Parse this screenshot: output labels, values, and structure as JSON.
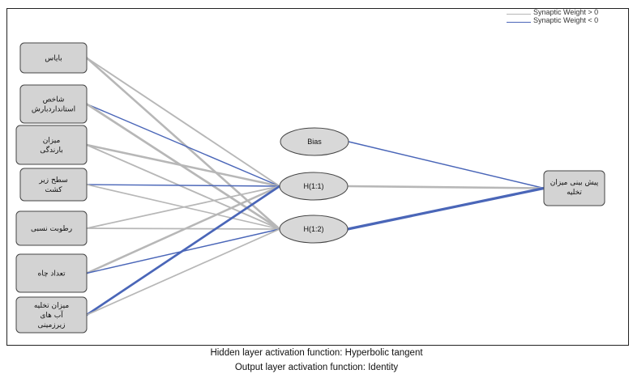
{
  "legend": {
    "positive_label": "Synaptic Weight > 0",
    "negative_label": "Synaptic Weight < 0",
    "positive_color": "#b7b7b7",
    "negative_color": "#4a66b8"
  },
  "input_nodes": [
    {
      "label_lines": [
        "بایاس"
      ]
    },
    {
      "label_lines": [
        "شاخص",
        "استاندارد‌بارش"
      ]
    },
    {
      "label_lines": [
        "میزان",
        "بارندگی"
      ]
    },
    {
      "label_lines": [
        "سطح زیر",
        "کشت"
      ]
    },
    {
      "label_lines": [
        "رطوبت نسبی"
      ]
    },
    {
      "label_lines": [
        "تعداد چاه"
      ]
    },
    {
      "label_lines": [
        "میزان تخلیه",
        "آب های",
        "زیرزمینی"
      ]
    }
  ],
  "hidden_bias": {
    "label": "Bias"
  },
  "hidden_nodes": [
    {
      "label": "H(1:1)"
    },
    {
      "label": "H(1:2)"
    }
  ],
  "output_node": {
    "label_lines": [
      "پیش بینی میزان",
      "تخلیه"
    ]
  },
  "connections": [
    {
      "from": "in0",
      "to": "h1",
      "sign": "positive",
      "strength": 0.35
    },
    {
      "from": "in0",
      "to": "h2",
      "sign": "positive",
      "strength": 0.55
    },
    {
      "from": "in1",
      "to": "h1",
      "sign": "negative",
      "strength": 0.2
    },
    {
      "from": "in1",
      "to": "h2",
      "sign": "positive",
      "strength": 0.6
    },
    {
      "from": "in2",
      "to": "h1",
      "sign": "positive",
      "strength": 0.55
    },
    {
      "from": "in2",
      "to": "h2",
      "sign": "positive",
      "strength": 0.35
    },
    {
      "from": "in3",
      "to": "h1",
      "sign": "negative",
      "strength": 0.2
    },
    {
      "from": "in3",
      "to": "h2",
      "sign": "positive",
      "strength": 0.25
    },
    {
      "from": "in4",
      "to": "h1",
      "sign": "positive",
      "strength": 0.3
    },
    {
      "from": "in4",
      "to": "h2",
      "sign": "positive",
      "strength": 0.3
    },
    {
      "from": "in5",
      "to": "h1",
      "sign": "positive",
      "strength": 0.55
    },
    {
      "from": "in5",
      "to": "h2",
      "sign": "negative",
      "strength": 0.2
    },
    {
      "from": "in6",
      "to": "h1",
      "sign": "negative",
      "strength": 0.6
    },
    {
      "from": "in6",
      "to": "h2",
      "sign": "positive",
      "strength": 0.3
    },
    {
      "from": "bias",
      "to": "out",
      "sign": "negative",
      "strength": 0.2
    },
    {
      "from": "h1",
      "to": "out",
      "sign": "positive",
      "strength": 0.55
    },
    {
      "from": "h2",
      "to": "out",
      "sign": "negative",
      "strength": 0.75
    }
  ],
  "footer": {
    "hidden_activation": "Hidden layer activation function: Hyperbolic tangent",
    "output_activation": "Output layer activation function: Identity"
  }
}
